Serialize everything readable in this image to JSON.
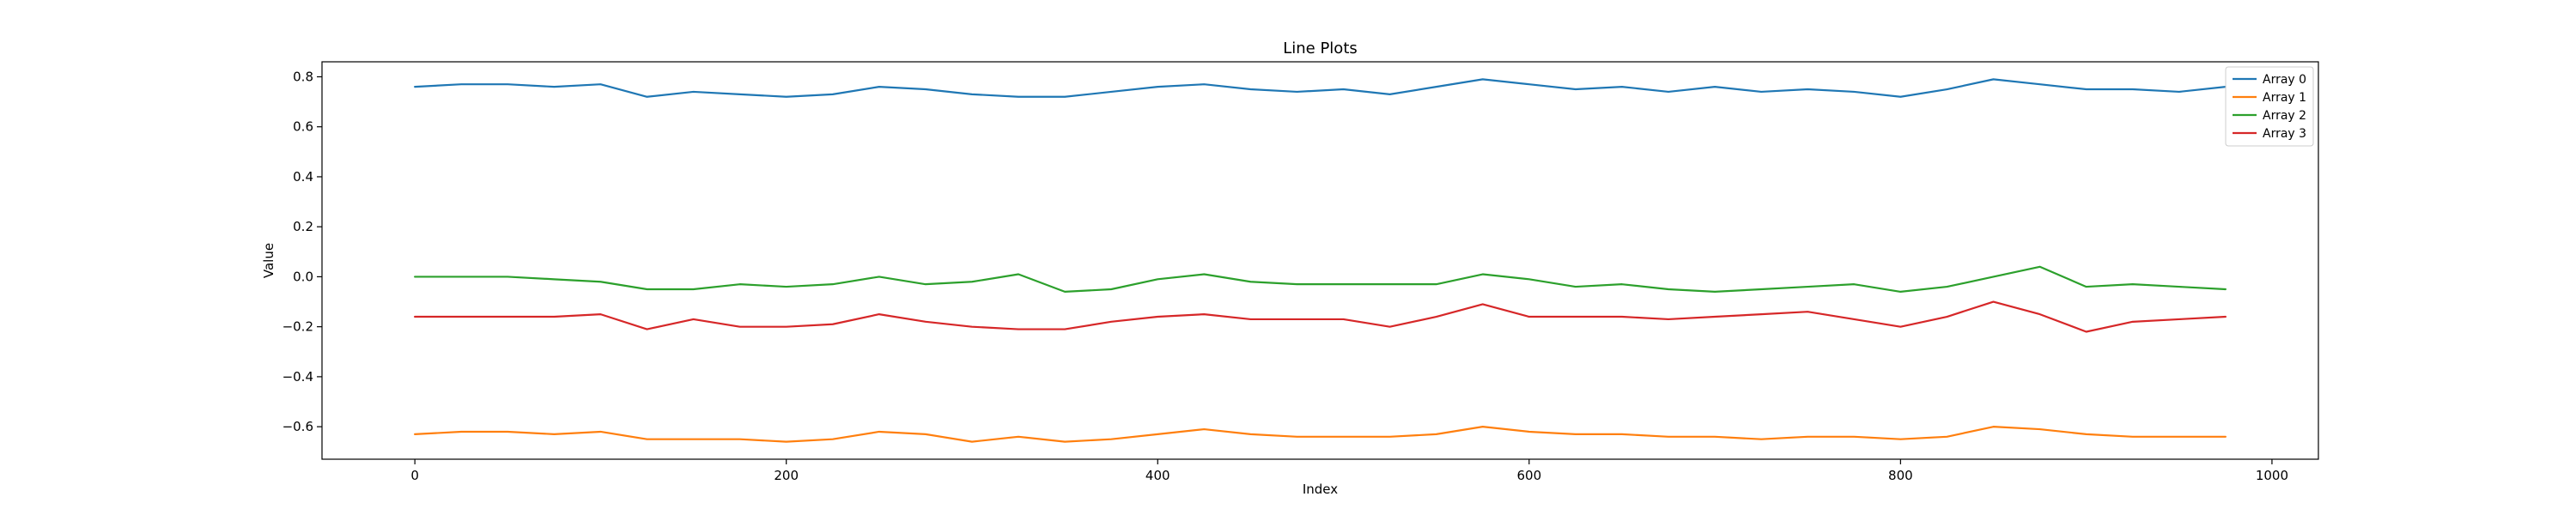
{
  "chart_data": {
    "type": "line",
    "title": "Line Plots",
    "xlabel": "Index",
    "ylabel": "Value",
    "xlim": [
      -50,
      1025
    ],
    "ylim": [
      -0.73,
      0.86
    ],
    "xticks": [
      0,
      200,
      400,
      600,
      800,
      1000
    ],
    "yticks": [
      -0.6,
      -0.4,
      -0.2,
      0.0,
      0.2,
      0.4,
      0.6,
      0.8
    ],
    "xtick_labels": [
      "0",
      "200",
      "400",
      "600",
      "800",
      "1000"
    ],
    "ytick_labels": [
      "−0.6",
      "−0.4",
      "−0.2",
      "0.0",
      "0.2",
      "0.4",
      "0.6",
      "0.8"
    ],
    "grid": false,
    "legend_position": "top-right",
    "x": [
      0,
      25,
      50,
      75,
      100,
      125,
      150,
      175,
      200,
      225,
      250,
      275,
      300,
      325,
      350,
      375,
      400,
      425,
      450,
      475,
      500,
      525,
      550,
      575,
      600,
      625,
      650,
      675,
      700,
      725,
      750,
      775,
      800,
      825,
      850,
      875,
      900,
      925,
      950,
      975
    ],
    "series": [
      {
        "name": "Array 0",
        "color": "#1f77b4",
        "values": [
          0.76,
          0.77,
          0.77,
          0.76,
          0.77,
          0.72,
          0.74,
          0.73,
          0.72,
          0.73,
          0.76,
          0.75,
          0.73,
          0.72,
          0.72,
          0.74,
          0.76,
          0.77,
          0.75,
          0.74,
          0.75,
          0.73,
          0.76,
          0.79,
          0.77,
          0.75,
          0.76,
          0.74,
          0.76,
          0.74,
          0.75,
          0.74,
          0.72,
          0.75,
          0.79,
          0.77,
          0.75,
          0.75,
          0.74,
          0.76
        ]
      },
      {
        "name": "Array 1",
        "color": "#ff7f0e",
        "values": [
          -0.63,
          -0.62,
          -0.62,
          -0.63,
          -0.62,
          -0.65,
          -0.65,
          -0.65,
          -0.66,
          -0.65,
          -0.62,
          -0.63,
          -0.66,
          -0.64,
          -0.66,
          -0.65,
          -0.63,
          -0.61,
          -0.63,
          -0.64,
          -0.64,
          -0.64,
          -0.63,
          -0.6,
          -0.62,
          -0.63,
          -0.63,
          -0.64,
          -0.64,
          -0.65,
          -0.64,
          -0.64,
          -0.65,
          -0.64,
          -0.6,
          -0.61,
          -0.63,
          -0.64,
          -0.64,
          -0.64
        ]
      },
      {
        "name": "Array 2",
        "color": "#2ca02c",
        "values": [
          0.0,
          0.0,
          0.0,
          -0.01,
          -0.02,
          -0.05,
          -0.05,
          -0.03,
          -0.04,
          -0.03,
          0.0,
          -0.03,
          -0.02,
          0.01,
          -0.06,
          -0.05,
          -0.01,
          0.01,
          -0.02,
          -0.03,
          -0.03,
          -0.03,
          -0.03,
          0.01,
          -0.01,
          -0.04,
          -0.03,
          -0.05,
          -0.06,
          -0.05,
          -0.04,
          -0.03,
          -0.06,
          -0.04,
          0.0,
          0.04,
          -0.04,
          -0.03,
          -0.04,
          -0.05
        ]
      },
      {
        "name": "Array 3",
        "color": "#d62728",
        "values": [
          -0.16,
          -0.16,
          -0.16,
          -0.16,
          -0.15,
          -0.21,
          -0.17,
          -0.2,
          -0.2,
          -0.19,
          -0.15,
          -0.18,
          -0.2,
          -0.21,
          -0.21,
          -0.18,
          -0.16,
          -0.15,
          -0.17,
          -0.17,
          -0.17,
          -0.2,
          -0.16,
          -0.11,
          -0.16,
          -0.16,
          -0.16,
          -0.17,
          -0.16,
          -0.15,
          -0.14,
          -0.17,
          -0.2,
          -0.16,
          -0.1,
          -0.15,
          -0.22,
          -0.18,
          -0.17,
          -0.16
        ]
      }
    ]
  }
}
